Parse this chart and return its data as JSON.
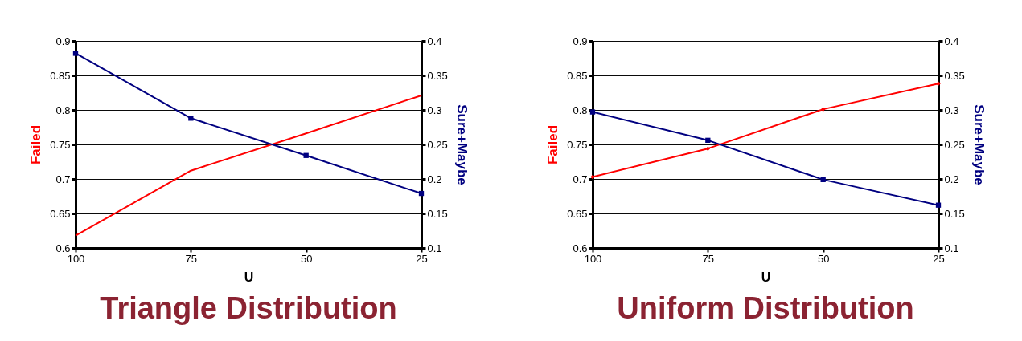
{
  "chart_data": [
    {
      "type": "line",
      "title": "Triangle Distribution",
      "xlabel": "U",
      "ylabel": "Failed",
      "y2label": "Sure+Maybe",
      "categories": [
        "100",
        "75",
        "50",
        "25"
      ],
      "series": [
        {
          "color": "#ff0000",
          "marker": "none",
          "values": [
            0.618,
            0.712,
            0.766,
            0.821
          ]
        },
        {
          "color": "#000080",
          "marker": "square",
          "axis": "y2",
          "values": [
            0.382,
            0.288,
            0.234,
            0.179
          ]
        }
      ],
      "ylim": [
        0.6,
        0.9
      ],
      "yticks": [
        0.6,
        0.65,
        0.7,
        0.75,
        0.8,
        0.85,
        0.9
      ],
      "y2lim": [
        0.1,
        0.4
      ],
      "y2ticks": [
        0.1,
        0.15,
        0.2,
        0.25,
        0.3,
        0.35,
        0.4
      ],
      "grid": "y"
    },
    {
      "type": "line",
      "title": "Uniform Distribution",
      "xlabel": "U",
      "ylabel": "Failed",
      "y2label": "Sure+Maybe",
      "categories": [
        "100",
        "75",
        "50",
        "25"
      ],
      "series": [
        {
          "color": "#ff0000",
          "marker": "diamond",
          "values": [
            0.703,
            0.744,
            0.801,
            0.838
          ]
        },
        {
          "color": "#000080",
          "marker": "square",
          "axis": "y2",
          "values": [
            0.297,
            0.256,
            0.199,
            0.162
          ]
        }
      ],
      "ylim": [
        0.6,
        0.9
      ],
      "yticks": [
        0.6,
        0.65,
        0.7,
        0.75,
        0.8,
        0.85,
        0.9
      ],
      "y2lim": [
        0.1,
        0.4
      ],
      "y2ticks": [
        0.1,
        0.15,
        0.2,
        0.25,
        0.3,
        0.35,
        0.4
      ],
      "grid": "y"
    }
  ]
}
